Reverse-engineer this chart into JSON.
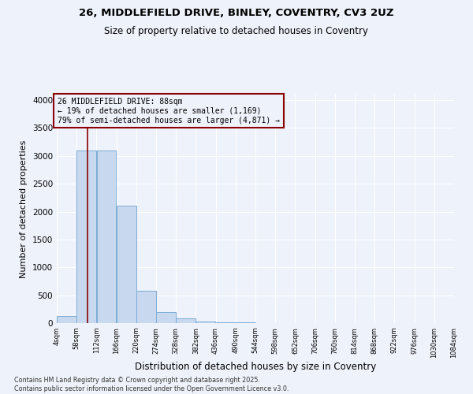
{
  "title_line1": "26, MIDDLEFIELD DRIVE, BINLEY, COVENTRY, CV3 2UZ",
  "title_line2": "Size of property relative to detached houses in Coventry",
  "xlabel": "Distribution of detached houses by size in Coventry",
  "ylabel": "Number of detached properties",
  "bins": [
    4,
    58,
    112,
    166,
    220,
    274,
    328,
    382,
    436,
    490,
    544,
    598,
    652,
    706,
    760,
    814,
    868,
    922,
    976,
    1030,
    1084
  ],
  "bar_heights": [
    130,
    3100,
    3100,
    2100,
    580,
    200,
    80,
    30,
    15,
    8,
    4,
    3,
    2,
    1,
    1,
    1,
    0,
    0,
    0,
    0
  ],
  "bar_color": "#c8d9ef",
  "bar_edge_color": "#7badd6",
  "property_size": 88,
  "property_line_color": "#8b0000",
  "annotation_text": "26 MIDDLEFIELD DRIVE: 88sqm\n← 19% of detached houses are smaller (1,169)\n79% of semi-detached houses are larger (4,871) →",
  "annotation_box_color": "#8b0000",
  "annotation_text_color": "#000000",
  "ylim": [
    0,
    4100
  ],
  "yticks": [
    0,
    500,
    1000,
    1500,
    2000,
    2500,
    3000,
    3500,
    4000
  ],
  "bg_color": "#eef2fa",
  "grid_color": "#ffffff",
  "footnote": "Contains HM Land Registry data © Crown copyright and database right 2025.\nContains public sector information licensed under the Open Government Licence v3.0."
}
